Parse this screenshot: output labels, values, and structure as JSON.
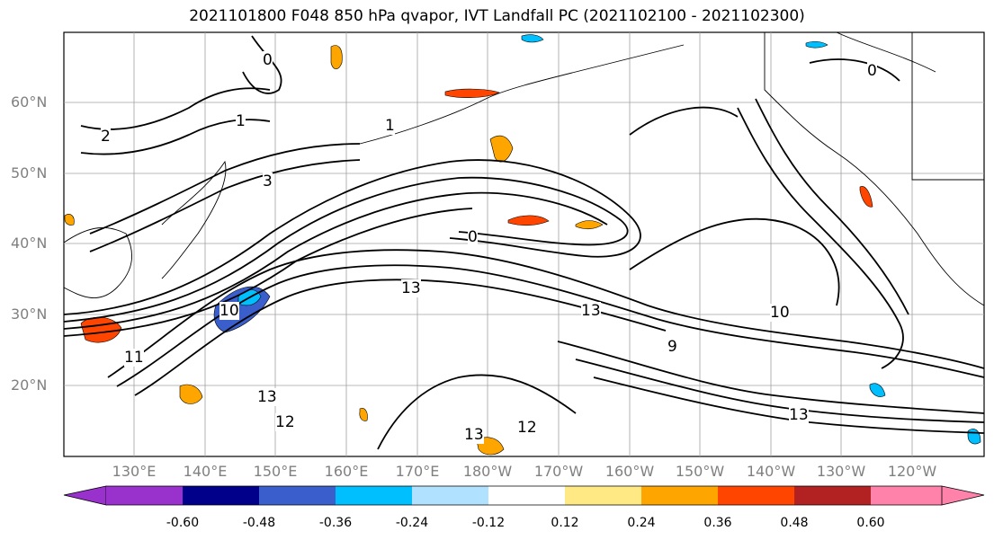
{
  "title": "2021101800 F048 850 hPa qvapor, IVT Landfall PC (2021102100 - 2021102300)",
  "lat_labels": [
    "60°N",
    "50°N",
    "40°N",
    "30°N",
    "20°N"
  ],
  "lon_labels": [
    "130°E",
    "140°E",
    "150°E",
    "160°E",
    "170°E",
    "180°W",
    "170°W",
    "160°W",
    "150°W",
    "140°W",
    "130°W",
    "120°W"
  ],
  "colorbar": {
    "colors": [
      "#9932cc",
      "#00008b",
      "#3a5fcd",
      "#00bfff",
      "#b0e2ff",
      "#ffffff",
      "#ffe985",
      "#ffa500",
      "#ff4500",
      "#b22222",
      "#ff82ab"
    ],
    "tick_labels": [
      "-0.60",
      "-0.48",
      "-0.36",
      "-0.24",
      "-0.12",
      "0.12",
      "0.24",
      "0.36",
      "0.48",
      "0.60"
    ]
  },
  "contour_labels": [
    {
      "text": "0"
    },
    {
      "text": "1"
    },
    {
      "text": "2"
    },
    {
      "text": "3"
    },
    {
      "text": "1"
    },
    {
      "text": "0"
    },
    {
      "text": "13"
    },
    {
      "text": "11"
    },
    {
      "text": "13"
    },
    {
      "text": "12"
    },
    {
      "text": "13"
    },
    {
      "text": "12"
    },
    {
      "text": "13"
    },
    {
      "text": "10"
    },
    {
      "text": "9"
    },
    {
      "text": "13"
    },
    {
      "text": "10"
    },
    {
      "text": "0"
    }
  ]
}
